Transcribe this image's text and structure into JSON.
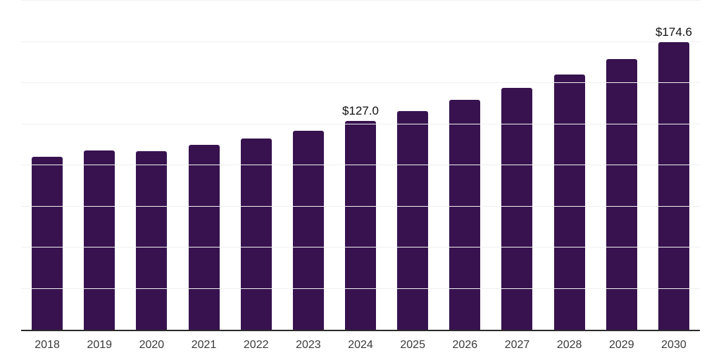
{
  "chart_data": {
    "type": "bar",
    "title": "",
    "xlabel": "",
    "ylabel": "",
    "categories": [
      "2018",
      "2019",
      "2020",
      "2021",
      "2022",
      "2023",
      "2024",
      "2025",
      "2026",
      "2027",
      "2028",
      "2029",
      "2030"
    ],
    "values": [
      105.0,
      108.8,
      108.5,
      112.5,
      116.4,
      121.1,
      127.0,
      132.8,
      139.9,
      146.9,
      155.0,
      164.5,
      174.6
    ],
    "data_labels": {
      "2024": "$127.0",
      "2030": "$174.6"
    },
    "ylim": [
      0,
      200
    ],
    "grid_interval": 25,
    "grid": true,
    "legend": false,
    "colors": {
      "bar": "#37124F",
      "gridline": "#f0f0f0",
      "axis": "#2b2b2b",
      "tick_label": "#3a3a3a",
      "value_label": "#111111",
      "background": "#ffffff"
    }
  }
}
